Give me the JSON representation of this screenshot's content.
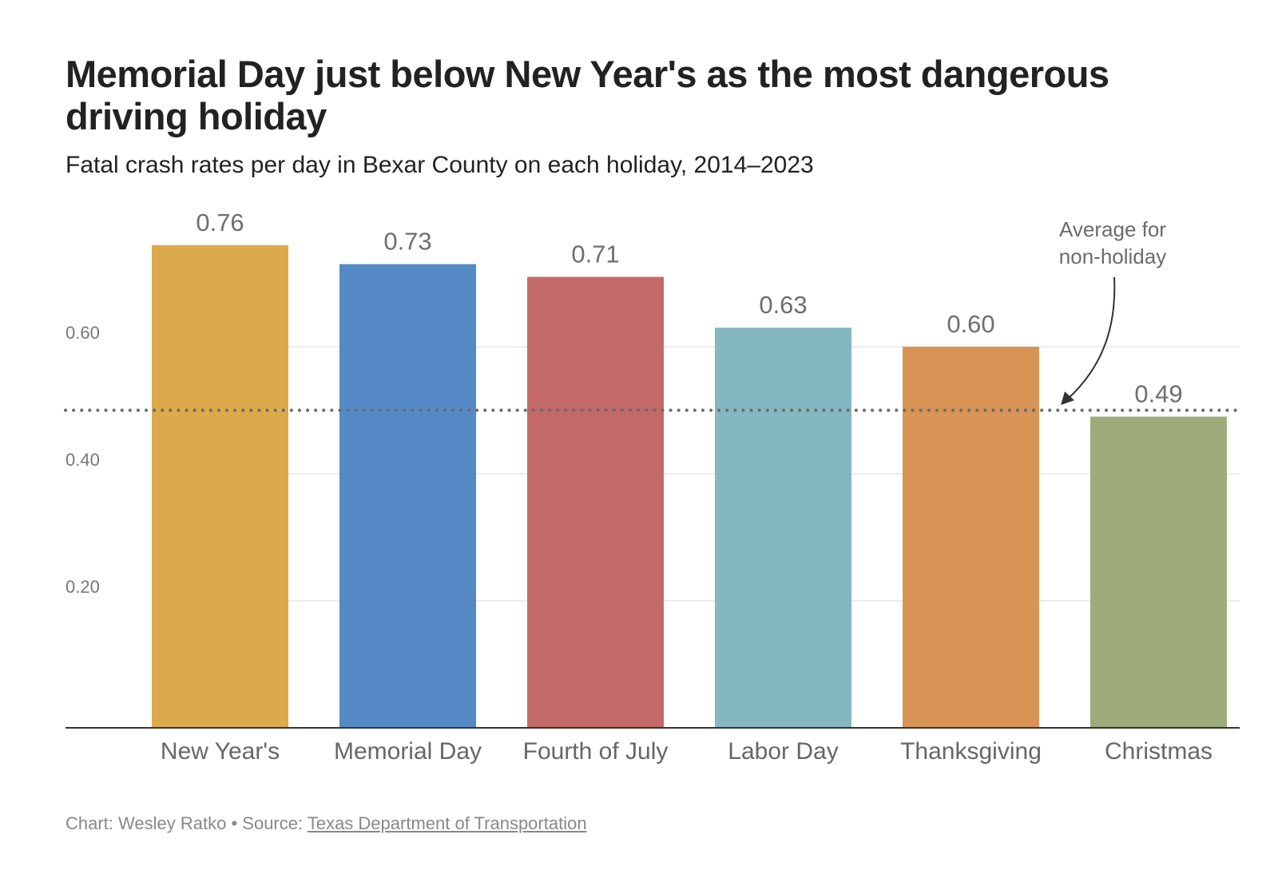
{
  "title": "Memorial Day just below New Year's as the most dangerous driving holiday",
  "subtitle": "Fatal crash rates per day in Bexar County on each holiday, 2014–2023",
  "footer": {
    "chart_credit": "Chart: Wesley Ratko",
    "separator": " • ",
    "source_prefix": "Source: ",
    "source_link": "Texas Department of Transportation"
  },
  "chart_data": {
    "type": "bar",
    "title": "Memorial Day just below New Year's as the most dangerous driving holiday",
    "subtitle": "Fatal crash rates per day in Bexar County on each holiday, 2014–2023",
    "xlabel": "",
    "ylabel": "",
    "categories": [
      "New Year's",
      "Memorial Day",
      "Fourth of July",
      "Labor Day",
      "Thanksgiving",
      "Christmas"
    ],
    "values": [
      0.76,
      0.73,
      0.71,
      0.63,
      0.6,
      0.49
    ],
    "value_labels": [
      "0.76",
      "0.73",
      "0.71",
      "0.63",
      "0.60",
      "0.49"
    ],
    "colors": [
      "#dcaa4a",
      "#5589c5",
      "#c36a68",
      "#84b8c1",
      "#d89455",
      "#9eab7b"
    ],
    "ylim": [
      0,
      0.76
    ],
    "yticks": [
      0.2,
      0.4,
      0.6
    ],
    "ytick_labels": [
      "0.20",
      "0.40",
      "0.60"
    ],
    "grid": true,
    "reference_line": {
      "value": 0.5,
      "style": "dotted"
    },
    "annotation": {
      "text_lines": [
        "Average for",
        "non-holiday"
      ]
    }
  }
}
